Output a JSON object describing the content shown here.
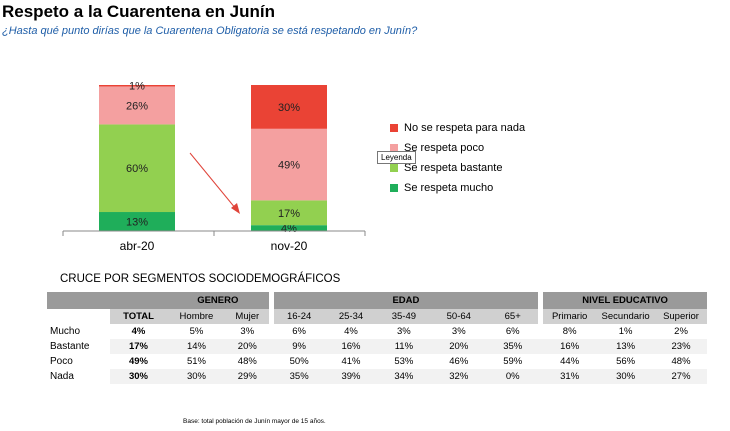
{
  "title": "Respeto a la Cuarentena en Junín",
  "subtitle": "¿Hasta qué punto dirías que la Cuarentena Obligatoria se está respetando en Junín?",
  "chart_data": {
    "type": "bar",
    "stacked": true,
    "categories": [
      "abr-20",
      "nov-20"
    ],
    "series": [
      {
        "name": "Se respeta mucho",
        "color": "#1fae5a",
        "values": [
          13,
          4
        ],
        "labels": [
          "13%",
          "4%"
        ]
      },
      {
        "name": "Se respeta bastante",
        "color": "#92d050",
        "values": [
          60,
          17
        ],
        "labels": [
          "60%",
          "17%"
        ]
      },
      {
        "name": "Se respeta poco",
        "color": "#f4a0a0",
        "values": [
          26,
          49
        ],
        "labels": [
          "26%",
          "49%"
        ]
      },
      {
        "name": "No se respeta para nada",
        "color": "#ea4335",
        "values": [
          1,
          30
        ],
        "labels": [
          "1%",
          "30%"
        ]
      }
    ],
    "legend_order": [
      "No se respeta para nada",
      "Se respeta poco",
      "Se respeta bastante",
      "Se respeta mucho"
    ],
    "legend_position": "right",
    "ylim": [
      0,
      100
    ]
  },
  "tooltip": "Leyenda",
  "section_title": "CRUCE POR SEGMENTOS SOCIODEMOGRÁFICOS",
  "table": {
    "groups": [
      "GENERO",
      "EDAD",
      "NIVEL EDUCATIVO"
    ],
    "columns": [
      "TOTAL",
      "Hombre",
      "Mujer",
      "16-24",
      "25-34",
      "35-49",
      "50-64",
      "65+",
      "Primario",
      "Secundario",
      "Superior"
    ],
    "rows": [
      {
        "label": "Mucho",
        "cells": [
          "4%",
          "5%",
          "3%",
          "6%",
          "4%",
          "3%",
          "3%",
          "6%",
          "8%",
          "1%",
          "2%"
        ]
      },
      {
        "label": "Bastante",
        "cells": [
          "17%",
          "14%",
          "20%",
          "9%",
          "16%",
          "11%",
          "20%",
          "35%",
          "16%",
          "13%",
          "23%"
        ]
      },
      {
        "label": "Poco",
        "cells": [
          "49%",
          "51%",
          "48%",
          "50%",
          "41%",
          "53%",
          "46%",
          "59%",
          "44%",
          "56%",
          "48%"
        ]
      },
      {
        "label": "Nada",
        "cells": [
          "30%",
          "30%",
          "29%",
          "35%",
          "39%",
          "34%",
          "32%",
          "0%",
          "31%",
          "30%",
          "27%"
        ]
      }
    ]
  },
  "footnote": "Base: total población de Junín mayor de 15 años."
}
